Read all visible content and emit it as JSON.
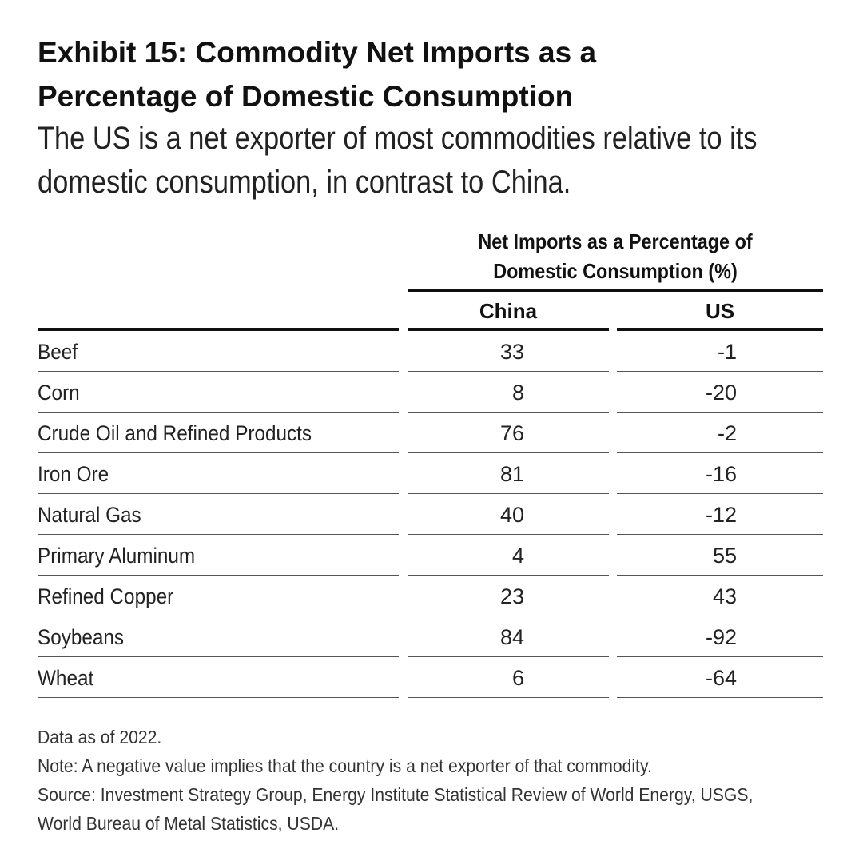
{
  "chart_data": {
    "type": "table",
    "title": "Exhibit 15: Commodity Net Imports as a Percentage of Domestic Consumption",
    "subtitle": "The US is a net exporter of most commodities relative to its domestic consumption, in contrast to China.",
    "column_group": "Net Imports as a Percentage of Domestic Consumption (%)",
    "columns": [
      "China",
      "US"
    ],
    "rows": [
      {
        "label": "Beef",
        "china": "33",
        "us": "-1"
      },
      {
        "label": "Corn",
        "china": "8",
        "us": "-20"
      },
      {
        "label": "Crude Oil and Refined Products",
        "china": "76",
        "us": "-2"
      },
      {
        "label": "Iron Ore",
        "china": "81",
        "us": "-16"
      },
      {
        "label": "Natural Gas",
        "china": "40",
        "us": "-12"
      },
      {
        "label": "Primary Aluminum",
        "china": "4",
        "us": "55"
      },
      {
        "label": "Refined Copper",
        "china": "23",
        "us": "43"
      },
      {
        "label": "Soybeans",
        "china": "84",
        "us": "-92"
      },
      {
        "label": "Wheat",
        "china": "6",
        "us": "-64"
      }
    ]
  },
  "header": {
    "title_line1": "Exhibit 15: Commodity Net Imports as a",
    "title_line2": "Percentage of Domestic Consumption",
    "subtitle_line1": "The US is a net exporter of most commodities relative to its",
    "subtitle_line2": "domestic consumption, in contrast to China."
  },
  "table": {
    "group_line1": "Net Imports as a Percentage of",
    "group_line2": "Domestic Consumption (%)",
    "col_china": "China",
    "col_us": "US"
  },
  "footer": {
    "data_as_of": "Data as of 2022.",
    "note": "Note: A negative value implies that the country is a net exporter of that commodity.",
    "source_line1": "Source: Investment Strategy Group, Energy Institute Statistical Review of World Energy, USGS,",
    "source_line2": "World Bureau of Metal Statistics, USDA."
  },
  "colors": {
    "text": "#1a1a1a",
    "rule": "#111111",
    "row_line": "#555555",
    "background": "#ffffff"
  }
}
